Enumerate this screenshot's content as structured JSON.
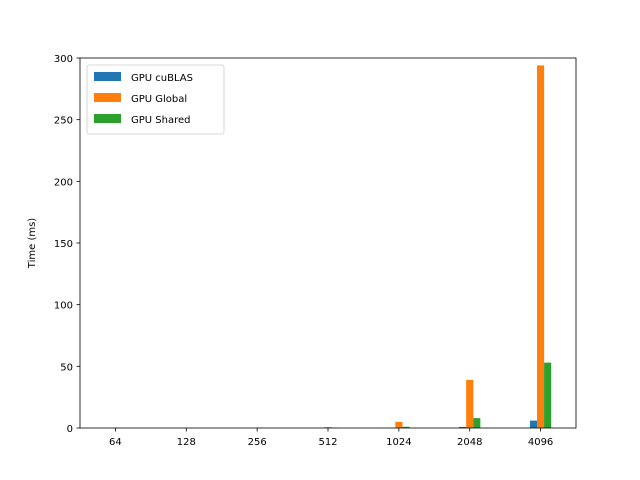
{
  "chart_data": {
    "type": "bar",
    "title": "",
    "xlabel": "",
    "ylabel": "Time (ms)",
    "categories": [
      "64",
      "128",
      "256",
      "512",
      "1024",
      "2048",
      "4096"
    ],
    "ylim": [
      0,
      300
    ],
    "yticks": [
      0,
      50,
      100,
      150,
      200,
      250,
      300
    ],
    "grid": false,
    "legend_position": "top-left",
    "series": [
      {
        "name": "GPU cuBLAS",
        "color": "#1f77b4",
        "values": [
          0.02,
          0.02,
          0.03,
          0.05,
          0.15,
          0.9,
          6.0
        ]
      },
      {
        "name": "GPU Global",
        "color": "#ff7f0e",
        "values": [
          0.02,
          0.05,
          0.15,
          0.7,
          5.0,
          39.0,
          294.0
        ]
      },
      {
        "name": "GPU Shared",
        "color": "#2ca02c",
        "values": [
          0.02,
          0.03,
          0.05,
          0.2,
          1.0,
          8.0,
          53.0
        ]
      }
    ]
  }
}
